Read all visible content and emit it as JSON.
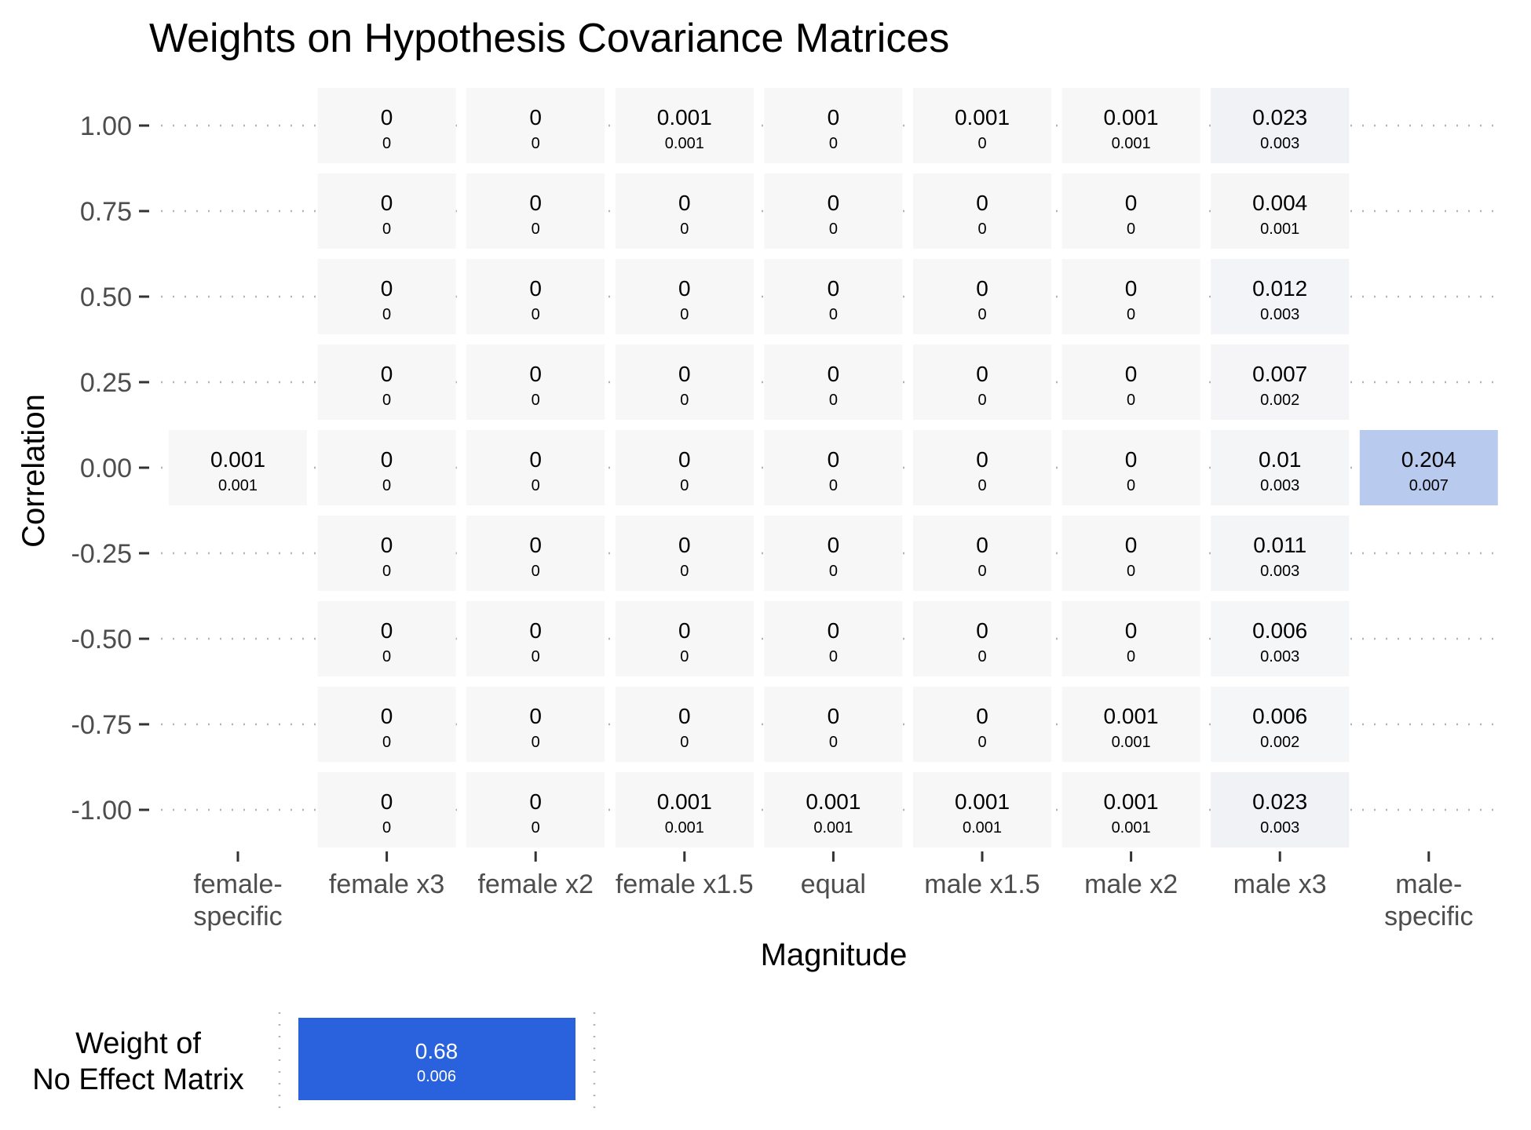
{
  "chart_data": {
    "type": "heatmap",
    "title": "Weights on Hypothesis Covariance Matrices",
    "xlabel": "Magnitude",
    "ylabel": "Correlation",
    "x_categories": [
      "female-specific",
      "female x3",
      "female x2",
      "female x1.5",
      "equal",
      "male x1.5",
      "male x2",
      "male x3",
      "male-specific"
    ],
    "y_values": [
      1.0,
      0.75,
      0.5,
      0.25,
      0.0,
      -0.25,
      -0.5,
      -0.75,
      -1.0
    ],
    "y_tick_labels": [
      "1.00",
      "0.75",
      "0.50",
      "0.25",
      "0.00",
      "-0.25",
      "-0.50",
      "-0.75",
      "-1.00"
    ],
    "color_low": "#f7f7f7",
    "color_high": "#2962dc",
    "max_weight": 0.68,
    "cells": [
      {
        "x": "female x3",
        "y": 1.0,
        "weight": "0",
        "se": "0"
      },
      {
        "x": "female x2",
        "y": 1.0,
        "weight": "0",
        "se": "0"
      },
      {
        "x": "female x1.5",
        "y": 1.0,
        "weight": "0.001",
        "se": "0.001"
      },
      {
        "x": "equal",
        "y": 1.0,
        "weight": "0",
        "se": "0"
      },
      {
        "x": "male x1.5",
        "y": 1.0,
        "weight": "0.001",
        "se": "0"
      },
      {
        "x": "male x2",
        "y": 1.0,
        "weight": "0.001",
        "se": "0.001"
      },
      {
        "x": "male x3",
        "y": 1.0,
        "weight": "0.023",
        "se": "0.003"
      },
      {
        "x": "female x3",
        "y": 0.75,
        "weight": "0",
        "se": "0"
      },
      {
        "x": "female x2",
        "y": 0.75,
        "weight": "0",
        "se": "0"
      },
      {
        "x": "female x1.5",
        "y": 0.75,
        "weight": "0",
        "se": "0"
      },
      {
        "x": "equal",
        "y": 0.75,
        "weight": "0",
        "se": "0"
      },
      {
        "x": "male x1.5",
        "y": 0.75,
        "weight": "0",
        "se": "0"
      },
      {
        "x": "male x2",
        "y": 0.75,
        "weight": "0",
        "se": "0"
      },
      {
        "x": "male x3",
        "y": 0.75,
        "weight": "0.004",
        "se": "0.001"
      },
      {
        "x": "female x3",
        "y": 0.5,
        "weight": "0",
        "se": "0"
      },
      {
        "x": "female x2",
        "y": 0.5,
        "weight": "0",
        "se": "0"
      },
      {
        "x": "female x1.5",
        "y": 0.5,
        "weight": "0",
        "se": "0"
      },
      {
        "x": "equal",
        "y": 0.5,
        "weight": "0",
        "se": "0"
      },
      {
        "x": "male x1.5",
        "y": 0.5,
        "weight": "0",
        "se": "0"
      },
      {
        "x": "male x2",
        "y": 0.5,
        "weight": "0",
        "se": "0"
      },
      {
        "x": "male x3",
        "y": 0.5,
        "weight": "0.012",
        "se": "0.003"
      },
      {
        "x": "female x3",
        "y": 0.25,
        "weight": "0",
        "se": "0"
      },
      {
        "x": "female x2",
        "y": 0.25,
        "weight": "0",
        "se": "0"
      },
      {
        "x": "female x1.5",
        "y": 0.25,
        "weight": "0",
        "se": "0"
      },
      {
        "x": "equal",
        "y": 0.25,
        "weight": "0",
        "se": "0"
      },
      {
        "x": "male x1.5",
        "y": 0.25,
        "weight": "0",
        "se": "0"
      },
      {
        "x": "male x2",
        "y": 0.25,
        "weight": "0",
        "se": "0"
      },
      {
        "x": "male x3",
        "y": 0.25,
        "weight": "0.007",
        "se": "0.002"
      },
      {
        "x": "female-specific",
        "y": 0.0,
        "weight": "0.001",
        "se": "0.001"
      },
      {
        "x": "female x3",
        "y": 0.0,
        "weight": "0",
        "se": "0"
      },
      {
        "x": "female x2",
        "y": 0.0,
        "weight": "0",
        "se": "0"
      },
      {
        "x": "female x1.5",
        "y": 0.0,
        "weight": "0",
        "se": "0"
      },
      {
        "x": "equal",
        "y": 0.0,
        "weight": "0",
        "se": "0"
      },
      {
        "x": "male x1.5",
        "y": 0.0,
        "weight": "0",
        "se": "0"
      },
      {
        "x": "male x2",
        "y": 0.0,
        "weight": "0",
        "se": "0"
      },
      {
        "x": "male x3",
        "y": 0.0,
        "weight": "0.01",
        "se": "0.003"
      },
      {
        "x": "male-specific",
        "y": 0.0,
        "weight": "0.204",
        "se": "0.007"
      },
      {
        "x": "female x3",
        "y": -0.25,
        "weight": "0",
        "se": "0"
      },
      {
        "x": "female x2",
        "y": -0.25,
        "weight": "0",
        "se": "0"
      },
      {
        "x": "female x1.5",
        "y": -0.25,
        "weight": "0",
        "se": "0"
      },
      {
        "x": "equal",
        "y": -0.25,
        "weight": "0",
        "se": "0"
      },
      {
        "x": "male x1.5",
        "y": -0.25,
        "weight": "0",
        "se": "0"
      },
      {
        "x": "male x2",
        "y": -0.25,
        "weight": "0",
        "se": "0"
      },
      {
        "x": "male x3",
        "y": -0.25,
        "weight": "0.011",
        "se": "0.003"
      },
      {
        "x": "female x3",
        "y": -0.5,
        "weight": "0",
        "se": "0"
      },
      {
        "x": "female x2",
        "y": -0.5,
        "weight": "0",
        "se": "0"
      },
      {
        "x": "female x1.5",
        "y": -0.5,
        "weight": "0",
        "se": "0"
      },
      {
        "x": "equal",
        "y": -0.5,
        "weight": "0",
        "se": "0"
      },
      {
        "x": "male x1.5",
        "y": -0.5,
        "weight": "0",
        "se": "0"
      },
      {
        "x": "male x2",
        "y": -0.5,
        "weight": "0",
        "se": "0"
      },
      {
        "x": "male x3",
        "y": -0.5,
        "weight": "0.006",
        "se": "0.003"
      },
      {
        "x": "female x3",
        "y": -0.75,
        "weight": "0",
        "se": "0"
      },
      {
        "x": "female x2",
        "y": -0.75,
        "weight": "0",
        "se": "0"
      },
      {
        "x": "female x1.5",
        "y": -0.75,
        "weight": "0",
        "se": "0"
      },
      {
        "x": "equal",
        "y": -0.75,
        "weight": "0",
        "se": "0"
      },
      {
        "x": "male x1.5",
        "y": -0.75,
        "weight": "0",
        "se": "0"
      },
      {
        "x": "male x2",
        "y": -0.75,
        "weight": "0.001",
        "se": "0.001"
      },
      {
        "x": "male x3",
        "y": -0.75,
        "weight": "0.006",
        "se": "0.002"
      },
      {
        "x": "female x3",
        "y": -1.0,
        "weight": "0",
        "se": "0"
      },
      {
        "x": "female x2",
        "y": -1.0,
        "weight": "0",
        "se": "0"
      },
      {
        "x": "female x1.5",
        "y": -1.0,
        "weight": "0.001",
        "se": "0.001"
      },
      {
        "x": "equal",
        "y": -1.0,
        "weight": "0.001",
        "se": "0.001"
      },
      {
        "x": "male x1.5",
        "y": -1.0,
        "weight": "0.001",
        "se": "0.001"
      },
      {
        "x": "male x2",
        "y": -1.0,
        "weight": "0.001",
        "se": "0.001"
      },
      {
        "x": "male x3",
        "y": -1.0,
        "weight": "0.023",
        "se": "0.003"
      }
    ],
    "grid": "dotted horizontal",
    "no_effect": {
      "label_lines": [
        "Weight of",
        "No Effect Matrix"
      ],
      "weight": "0.68",
      "se": "0.006"
    }
  }
}
